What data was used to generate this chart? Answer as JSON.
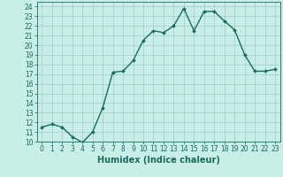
{
  "x": [
    0,
    1,
    2,
    3,
    4,
    5,
    6,
    7,
    8,
    9,
    10,
    11,
    12,
    13,
    14,
    15,
    16,
    17,
    18,
    19,
    20,
    21,
    22,
    23
  ],
  "y": [
    11.5,
    11.8,
    11.5,
    10.5,
    9.9,
    11.0,
    13.5,
    17.2,
    17.3,
    18.4,
    20.5,
    21.5,
    21.3,
    22.0,
    23.8,
    21.5,
    23.5,
    23.5,
    22.5,
    21.6,
    19.0,
    17.3,
    17.3,
    17.5
  ],
  "line_color": "#1a6b5e",
  "marker_color": "#1a6b5e",
  "bg_color": "#c8eee8",
  "grid_color": "#a0ccc8",
  "xlabel": "Humidex (Indice chaleur)",
  "yticks": [
    10,
    11,
    12,
    13,
    14,
    15,
    16,
    17,
    18,
    19,
    20,
    21,
    22,
    23,
    24
  ],
  "xticks": [
    0,
    1,
    2,
    3,
    4,
    5,
    6,
    7,
    8,
    9,
    10,
    11,
    12,
    13,
    14,
    15,
    16,
    17,
    18,
    19,
    20,
    21,
    22,
    23
  ],
  "ylim": [
    10,
    24.5
  ],
  "xlim": [
    -0.5,
    23.5
  ],
  "xlabel_fontsize": 7,
  "tick_fontsize": 5.5,
  "line_width": 1.0,
  "marker_size": 2.0
}
